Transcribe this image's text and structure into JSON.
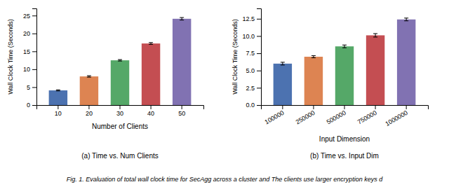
{
  "title": "Fig. 1. Evaluation of total wall clock time for SecAgg across a cluster and The clients use larger encryption keys d",
  "chart_data": [
    {
      "type": "bar",
      "title": "(a) Time vs. Num Clients",
      "categories": [
        "10",
        "20",
        "30",
        "40",
        "50"
      ],
      "values": [
        4.1,
        8.0,
        12.5,
        17.2,
        24.1
      ],
      "errors": [
        0.15,
        0.2,
        0.2,
        0.25,
        0.35
      ],
      "colors": [
        "#4c72b0",
        "#dd8452",
        "#55a868",
        "#c44e52",
        "#8172b2"
      ],
      "xlabel": "Number of Clients",
      "ylabel": "Wall Clock Time (Seconds)",
      "ylim": [
        0,
        27
      ],
      "yticks": [
        0,
        5,
        10,
        15,
        20,
        25
      ],
      "grid": false
    },
    {
      "type": "bar",
      "title": "(b) Time vs. Input Dim",
      "categories": [
        "100000",
        "250000",
        "500000",
        "750000",
        "1000000"
      ],
      "values": [
        6.0,
        7.0,
        8.5,
        10.1,
        12.4
      ],
      "errors": [
        0.2,
        0.15,
        0.2,
        0.25,
        0.2
      ],
      "colors": [
        "#4c72b0",
        "#dd8452",
        "#55a868",
        "#c44e52",
        "#8172b2"
      ],
      "xlabel": "Input Dimension",
      "ylabel": "Wall Clock Time (Seconds)",
      "ylim": [
        0,
        14
      ],
      "yticks": [
        {
          "value": 0,
          "label": "0.0"
        },
        2.5,
        {
          "value": 5,
          "label": "5.0"
        },
        7.5,
        {
          "value": 10,
          "label": "10.0"
        },
        12.5
      ],
      "grid": false
    }
  ]
}
